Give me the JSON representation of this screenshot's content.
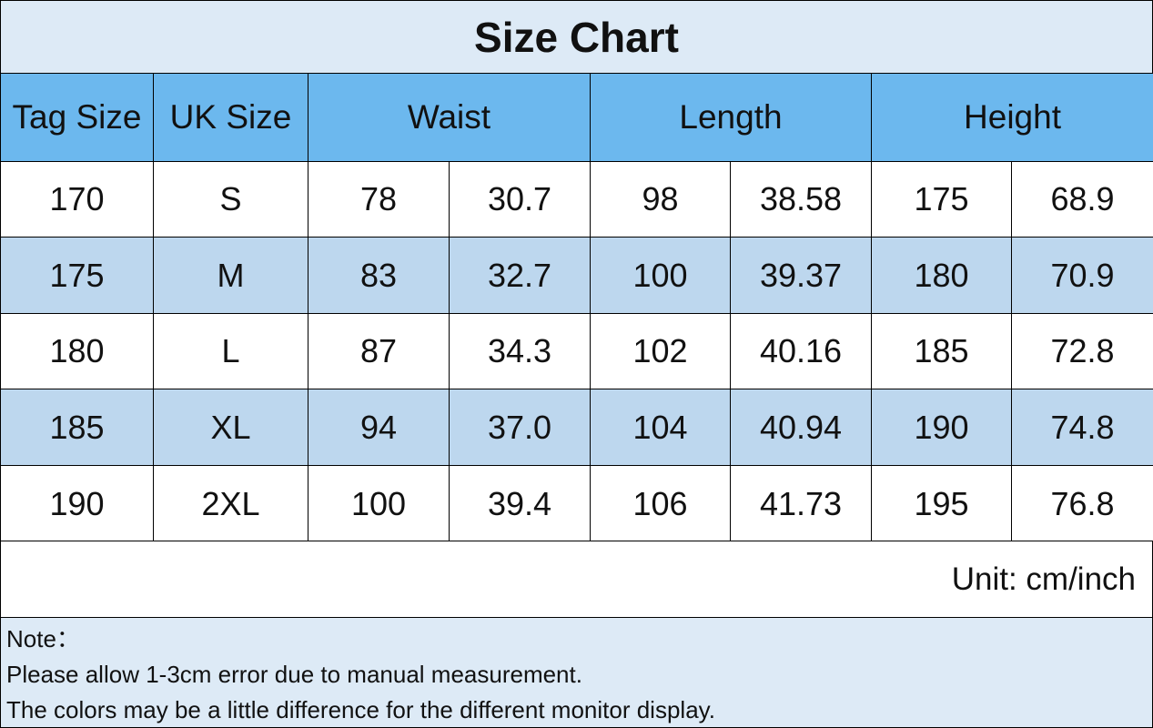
{
  "header": {
    "title": "Size Chart"
  },
  "table": {
    "columns": [
      "Tag Size",
      "UK Size",
      "Waist",
      "Length",
      "Height"
    ],
    "rows": [
      [
        "170",
        "S",
        "78",
        "30.7",
        "98",
        "38.58",
        "175",
        "68.9"
      ],
      [
        "175",
        "M",
        "83",
        "32.7",
        "100",
        "39.37",
        "180",
        "70.9"
      ],
      [
        "180",
        "L",
        "87",
        "34.3",
        "102",
        "40.16",
        "185",
        "72.8"
      ],
      [
        "185",
        "XL",
        "94",
        "37.0",
        "104",
        "40.94",
        "190",
        "74.8"
      ],
      [
        "190",
        "2XL",
        "100",
        "39.4",
        "106",
        "41.73",
        "195",
        "76.8"
      ]
    ]
  },
  "unit": "Unit: cm/inch",
  "note": {
    "title": "Note：",
    "lines": [
      "Please allow 1-3cm error due to manual measurement.",
      "The colors may be a little difference for the different monitor display."
    ]
  }
}
